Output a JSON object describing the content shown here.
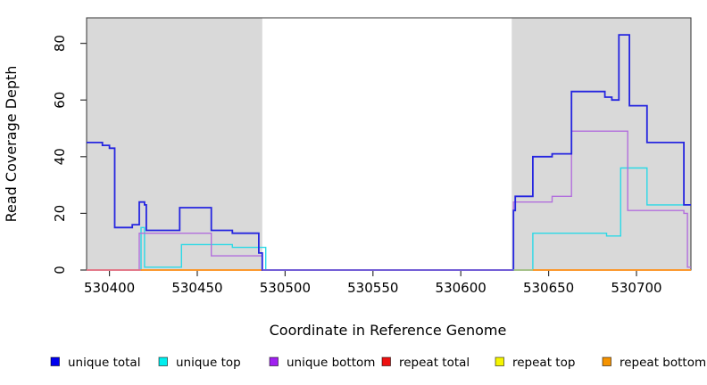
{
  "chart_data": {
    "type": "line",
    "subtype": "step",
    "title": "",
    "xlabel": "Coordinate in Reference Genome",
    "ylabel": "Read Coverage Depth",
    "xlim": [
      530387,
      530731
    ],
    "ylim": [
      0,
      89
    ],
    "x_ticks": [
      530400,
      530450,
      530500,
      530550,
      530600,
      530650,
      530700
    ],
    "y_ticks": [
      0,
      20,
      40,
      60,
      80
    ],
    "grid": false,
    "legend_position": "bottom",
    "plot_background": "#ffffff",
    "shaded_regions": [
      {
        "name": "shaded-region-left",
        "x0": 530387,
        "x1": 530487,
        "color": "#d9d9d9"
      },
      {
        "name": "shaded-region-right",
        "x0": 530629,
        "x1": 530731,
        "color": "#d9d9d9"
      }
    ],
    "series": [
      {
        "name": "unique top",
        "color": "#2bd9e6",
        "width": 1.4,
        "steps": [
          [
            530387,
            0
          ],
          [
            530418,
            15
          ],
          [
            530420,
            1
          ],
          [
            530441,
            9
          ],
          [
            530470,
            8
          ],
          [
            530489,
            0
          ],
          [
            530641,
            13
          ],
          [
            530683,
            12
          ],
          [
            530691,
            36
          ],
          [
            530706,
            23
          ]
        ]
      },
      {
        "name": "unique bottom",
        "color": "#b26fdd",
        "width": 1.4,
        "steps": [
          [
            530387,
            0
          ],
          [
            530417,
            13
          ],
          [
            530458,
            5
          ],
          [
            530487,
            0
          ],
          [
            530630,
            24
          ],
          [
            530652,
            26
          ],
          [
            530663,
            49
          ],
          [
            530695,
            21
          ],
          [
            530727,
            20
          ],
          [
            530729,
            1
          ]
        ]
      },
      {
        "name": "repeat top",
        "color": "#f0f000",
        "width": 1.4,
        "steps": [
          [
            530387,
            0
          ]
        ]
      },
      {
        "name": "repeat total",
        "color": "#ec5f92",
        "width": 1.4,
        "steps": [
          [
            530387,
            0
          ]
        ]
      },
      {
        "name": "repeat bottom",
        "color": "#ff9412",
        "width": 1.6,
        "steps": [
          [
            530418,
            0
          ]
        ]
      },
      {
        "name": "unique total",
        "color": "#2525e0",
        "width": 1.8,
        "steps": [
          [
            530387,
            45
          ],
          [
            530396,
            44
          ],
          [
            530400,
            43
          ],
          [
            530403,
            15
          ],
          [
            530413,
            16
          ],
          [
            530417,
            24
          ],
          [
            530420,
            23
          ],
          [
            530421,
            14
          ],
          [
            530440,
            22
          ],
          [
            530458,
            14
          ],
          [
            530470,
            13
          ],
          [
            530485,
            6
          ],
          [
            530487,
            0
          ],
          [
            530630,
            21
          ],
          [
            530631,
            26
          ],
          [
            530641,
            40
          ],
          [
            530652,
            41
          ],
          [
            530663,
            63
          ],
          [
            530682,
            61
          ],
          [
            530686,
            60
          ],
          [
            530690,
            83
          ],
          [
            530696,
            58
          ],
          [
            530706,
            45
          ],
          [
            530727,
            23
          ]
        ]
      }
    ],
    "zero_line_overlays": [
      {
        "name": "middle-gap-overlap",
        "x0": 530487,
        "x1": 530630,
        "color": "#7d68e0"
      },
      {
        "name": "cyan-yellow-overlap",
        "x0": 530630,
        "x1": 530641,
        "color": "#8fcf9f"
      }
    ]
  },
  "legend": {
    "items": [
      {
        "label": "unique total",
        "color": "#0000ee"
      },
      {
        "label": "unique top",
        "color": "#00eeee"
      },
      {
        "label": "unique bottom",
        "color": "#a020f0"
      },
      {
        "label": "repeat total",
        "color": "#ee1111"
      },
      {
        "label": "repeat top",
        "color": "#f5f500"
      },
      {
        "label": "repeat bottom",
        "color": "#f59300"
      }
    ]
  }
}
